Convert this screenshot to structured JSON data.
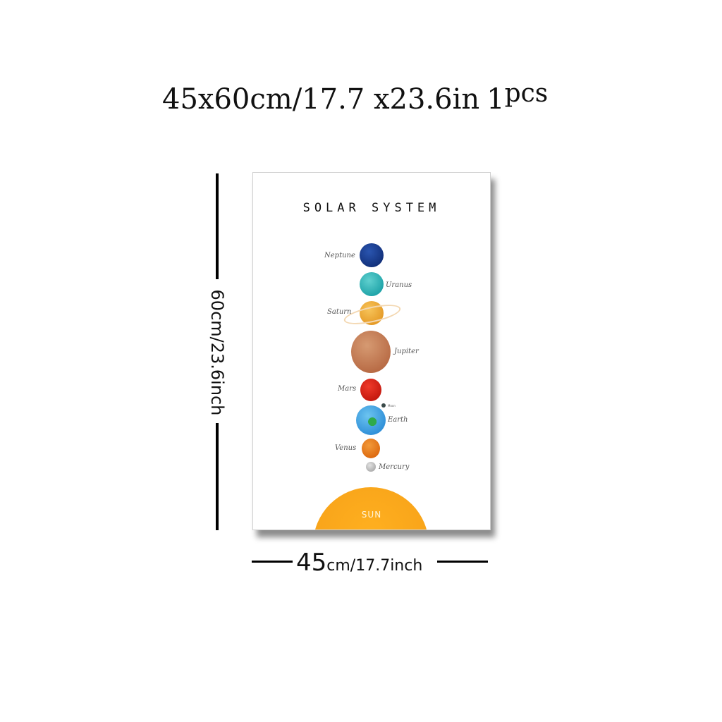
{
  "headline": {
    "size": "45x60cm/17.7 x23.6in",
    "qty": "1",
    "unit": "pcs"
  },
  "height_label": "60cm/23.6inch",
  "width_label": {
    "big": "45",
    "small": "cm/17.7inch"
  },
  "poster": {
    "title": "SOLAR SYSTEM",
    "planets": {
      "neptune": "Neptune",
      "uranus": "Uranus",
      "saturn": "Saturn",
      "jupiter": "Jupiter",
      "mars": "Mars",
      "earth": "Earth",
      "venus": "Venus",
      "mercury": "Mercury",
      "moon": "Moon"
    },
    "sun": "SUN"
  }
}
